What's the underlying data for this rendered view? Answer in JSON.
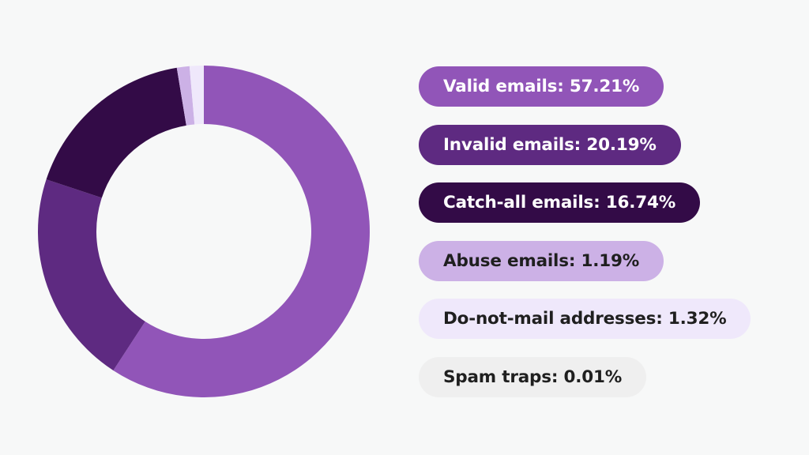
{
  "chart_data": {
    "type": "pie",
    "variant": "donut",
    "legend_position": "right",
    "slices": [
      {
        "label": "Valid emails: 57.21%",
        "value": 57.21,
        "color": "#9155b8",
        "text_color": "#ffffff"
      },
      {
        "label": "Invalid emails: 20.19%",
        "value": 20.19,
        "color": "#5e2a81",
        "text_color": "#ffffff"
      },
      {
        "label": "Catch-all emails: 16.74%",
        "value": 16.74,
        "color": "#330b47",
        "text_color": "#ffffff"
      },
      {
        "label": "Abuse emails: 1.19%",
        "value": 1.19,
        "color": "#ccb1e6",
        "text_color": "#1f1f1f"
      },
      {
        "label": "Do-not-mail addresses: 1.32%",
        "value": 1.32,
        "color": "#efe8fb",
        "text_color": "#1f1f1f"
      },
      {
        "label": "Spam traps: 0.01%",
        "value": 0.01,
        "color": "#efefef",
        "text_color": "#1f1f1f"
      }
    ]
  }
}
